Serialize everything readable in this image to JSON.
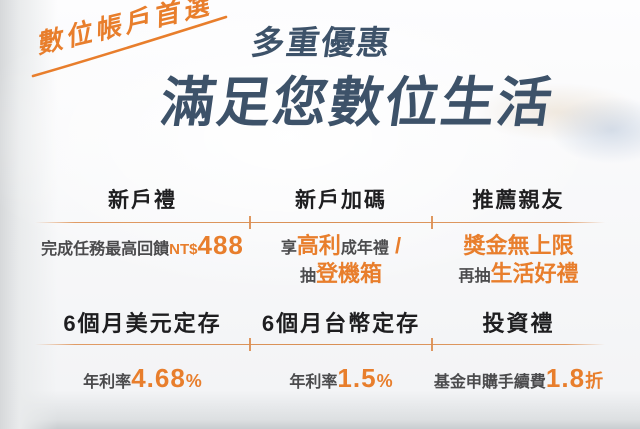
{
  "badge": {
    "label": "數位帳戶首選"
  },
  "heading": {
    "kicker": "多重優惠",
    "title": "滿足您數位生活"
  },
  "colors": {
    "accent": "#E87E2C",
    "navy": "#3D5269",
    "divider": "#DD9257"
  },
  "grid": {
    "rows": [
      {
        "cells": [
          {
            "title": "新戶禮",
            "lines": [
              [
                {
                  "t": "完成任務最高回饋",
                  "c": "plain"
                },
                {
                  "t": "NT$",
                  "c": "accent"
                },
                {
                  "t": "488",
                  "c": "num"
                }
              ]
            ]
          },
          {
            "title": "新戶加碼",
            "lines": [
              [
                {
                  "t": "享",
                  "c": "plain"
                },
                {
                  "t": "高利",
                  "c": "lg"
                },
                {
                  "t": "成年禮",
                  "c": "plain"
                },
                {
                  "t": " /",
                  "c": "lg"
                }
              ],
              [
                {
                  "t": "抽",
                  "c": "plain"
                },
                {
                  "t": "登機箱",
                  "c": "lg"
                }
              ]
            ]
          },
          {
            "title": "推薦親友",
            "lines": [
              [
                {
                  "t": "獎金無上限",
                  "c": "lg"
                }
              ],
              [
                {
                  "t": "再抽",
                  "c": "plain"
                },
                {
                  "t": "生活好禮",
                  "c": "lg"
                }
              ]
            ]
          }
        ]
      },
      {
        "cells": [
          {
            "title": "6個月美元定存",
            "lines": [
              [
                {
                  "t": "年利率",
                  "c": "plain"
                },
                {
                  "t": "4.68",
                  "c": "num"
                },
                {
                  "t": "%",
                  "c": "md"
                }
              ]
            ]
          },
          {
            "title": "6個月台幣定存",
            "lines": [
              [
                {
                  "t": "年利率",
                  "c": "plain"
                },
                {
                  "t": "1.5",
                  "c": "num"
                },
                {
                  "t": "%",
                  "c": "md"
                }
              ]
            ]
          },
          {
            "title": "投資禮",
            "lines": [
              [
                {
                  "t": "基金申購手續費",
                  "c": "plain"
                },
                {
                  "t": "1.8",
                  "c": "num"
                },
                {
                  "t": "折",
                  "c": "md"
                }
              ]
            ]
          }
        ]
      }
    ]
  }
}
